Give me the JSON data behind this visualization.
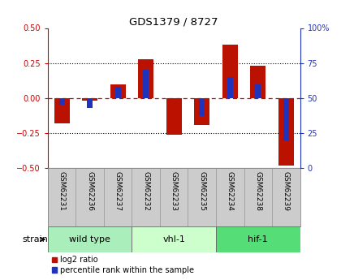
{
  "title": "GDS1379 / 8727",
  "samples": [
    "GSM62231",
    "GSM62236",
    "GSM62237",
    "GSM62232",
    "GSM62233",
    "GSM62235",
    "GSM62234",
    "GSM62238",
    "GSM62239"
  ],
  "log2_ratio": [
    -0.18,
    -0.02,
    0.1,
    0.275,
    -0.26,
    -0.19,
    0.38,
    0.23,
    -0.48
  ],
  "percentile": [
    45,
    43,
    58,
    70,
    50,
    37,
    65,
    60,
    20
  ],
  "groups": [
    {
      "label": "wild type",
      "start": 0,
      "end": 3,
      "color": "#aaeebb"
    },
    {
      "label": "vhl-1",
      "start": 3,
      "end": 6,
      "color": "#ccffcc"
    },
    {
      "label": "hif-1",
      "start": 6,
      "end": 9,
      "color": "#55dd77"
    }
  ],
  "ylim": [
    -0.5,
    0.5
  ],
  "yticks_left": [
    -0.5,
    -0.25,
    0,
    0.25,
    0.5
  ],
  "yticks_right": [
    0,
    25,
    50,
    75,
    100
  ],
  "bar_color": "#bb1100",
  "pct_color": "#2233bb",
  "pct_mid": 50,
  "bar_width": 0.55,
  "pct_bar_width": 0.2,
  "background_color": "#ffffff",
  "plot_bg": "#ffffff",
  "zero_line_color": "#cc0000",
  "strain_label": "strain",
  "legend_log2": "log2 ratio",
  "legend_pct": "percentile rank within the sample",
  "sample_box_color": "#cccccc",
  "sample_box_edge": "#999999"
}
